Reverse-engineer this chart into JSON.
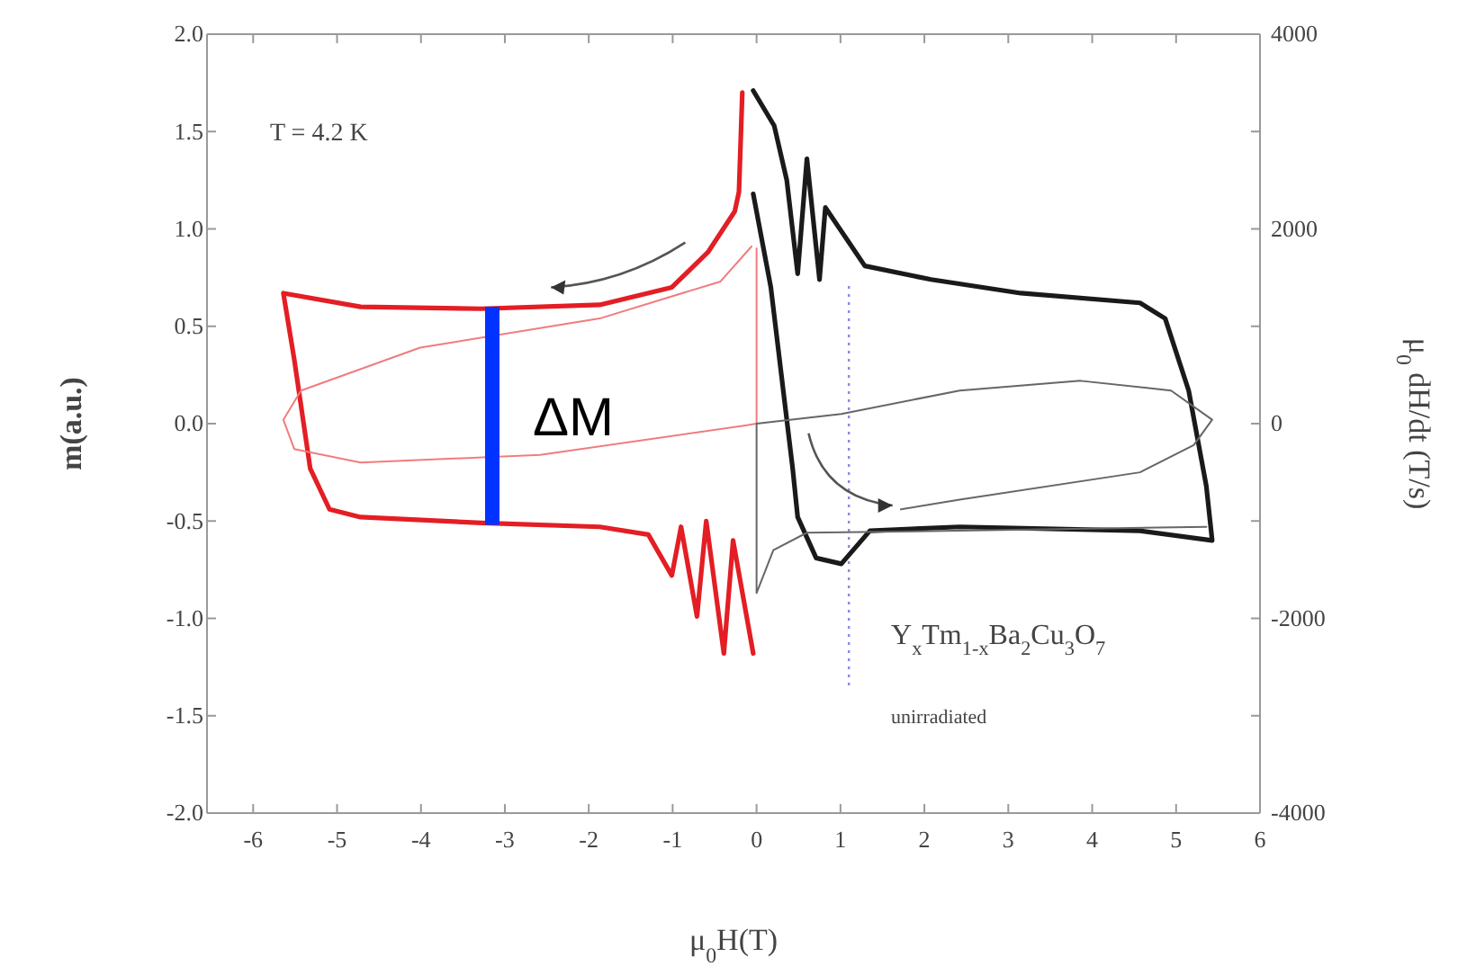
{
  "chart_data": {
    "type": "line",
    "xlabel": "μ$_{0}$H(T)",
    "ylabel": "m(a.u.)",
    "y2label": "μ$_{0}$ dH/dt (T/s)",
    "xlim": [
      -6.55,
      6
    ],
    "xticks": [
      -6,
      -5,
      -4,
      -3,
      -2,
      -1,
      0,
      1,
      2,
      3,
      4,
      5,
      6
    ],
    "ylim": [
      -2,
      2
    ],
    "yticks": [
      {
        "value": -2,
        "label": "-2.0"
      },
      {
        "value": -1.5,
        "label": "-1.5"
      },
      {
        "value": -1,
        "label": "-1.0"
      },
      {
        "value": -0.5,
        "label": "-0.5"
      },
      {
        "value": 0,
        "label": "0.0"
      },
      {
        "value": 0.5,
        "label": "0.5"
      },
      {
        "value": 1,
        "label": "1.0"
      },
      {
        "value": 1.5,
        "label": "1.5"
      },
      {
        "value": 2,
        "label": "2.0"
      }
    ],
    "y2lim": [
      -4000,
      4000
    ],
    "y2ticks": [
      -4000,
      {
        "value": -3000,
        "label": null
      },
      -2000,
      {
        "value": -1000,
        "label": null
      },
      0,
      {
        "value": 1000,
        "label": null
      },
      2000,
      {
        "value": 3000,
        "label": null
      },
      4000
    ],
    "grid": false,
    "line_style": "solid",
    "marker": "none",
    "series": [
      {
        "color": "#e31e24",
        "x": [
          -0.17,
          -0.21,
          -0.26,
          -0.58,
          -1.01,
          -1.87,
          -3.28,
          -4.72,
          -5.64,
          -5.51,
          -5.32,
          -5.09,
          -4.72,
          -3.28,
          -1.87,
          -1.29,
          -1.01,
          -0.9,
          -0.71,
          -0.6,
          -0.39,
          -0.28,
          -0.04
        ],
        "values": [
          1.7,
          1.19,
          1.09,
          0.88,
          0.7,
          0.61,
          0.59,
          0.6,
          0.67,
          0.33,
          -0.23,
          -0.44,
          -0.48,
          -0.51,
          -0.53,
          -0.57,
          -0.78,
          -0.53,
          -0.99,
          -0.5,
          -1.18,
          -0.6,
          -1.18
        ]
      },
      {
        "color": "#1a1a1a",
        "x": [
          -0.04,
          0.17,
          0.43,
          0.49,
          0.71,
          1.01,
          1.35,
          2.42,
          4.57,
          5.43,
          5.36,
          5.15,
          4.87,
          4.57,
          3.15,
          2.08,
          1.29,
          1.07,
          0.82,
          0.75,
          0.6,
          0.49,
          0.36,
          0.21,
          -0.04
        ],
        "values": [
          1.18,
          0.7,
          -0.23,
          -0.48,
          -0.69,
          -0.72,
          -0.55,
          -0.53,
          -0.55,
          -0.6,
          -0.32,
          0.17,
          0.54,
          0.62,
          0.67,
          0.74,
          0.81,
          0.95,
          1.11,
          0.74,
          1.36,
          0.77,
          1.25,
          1.53,
          1.71
        ]
      },
      {
        "color": "#f07c7e",
        "axis": "y2",
        "x": [
          -0.06,
          -0.43,
          -1.87,
          -4.01,
          -5.43,
          -5.64,
          -5.51,
          -4.72,
          -2.58,
          -0.15,
          0,
          0
        ],
        "values": [
          1820,
          1460,
          1080,
          780,
          340,
          40,
          -260,
          -400,
          -320,
          -20,
          0,
          1800
        ]
      },
      {
        "color": "#666666",
        "axis": "y2",
        "x": [
          0,
          1.01,
          2.42,
          3.86,
          4.94,
          5.43,
          5.21,
          4.57,
          2.42,
          1.72
        ],
        "values": [
          0,
          100,
          340,
          440,
          340,
          40,
          -220,
          -500,
          -780,
          -880
        ]
      },
      {
        "color": "#666666",
        "axis": "y2",
        "x": [
          0,
          0,
          0.2,
          0.6,
          2.4,
          5.36
        ],
        "values": [
          0,
          -1740,
          -1300,
          -1120,
          -1100,
          -1060
        ]
      }
    ],
    "ref_lines": [
      {
        "axis": "x",
        "value": 1.1,
        "color": "#8a8ae0",
        "line_style": "dotted"
      }
    ],
    "annotations": [
      "T = 4.2 K",
      "ΔM",
      "Y$_{x}$Tm$_{1-x}$Ba$_{2}$Cu$_{3}$O$_{7}$",
      "unirradiated"
    ]
  }
}
